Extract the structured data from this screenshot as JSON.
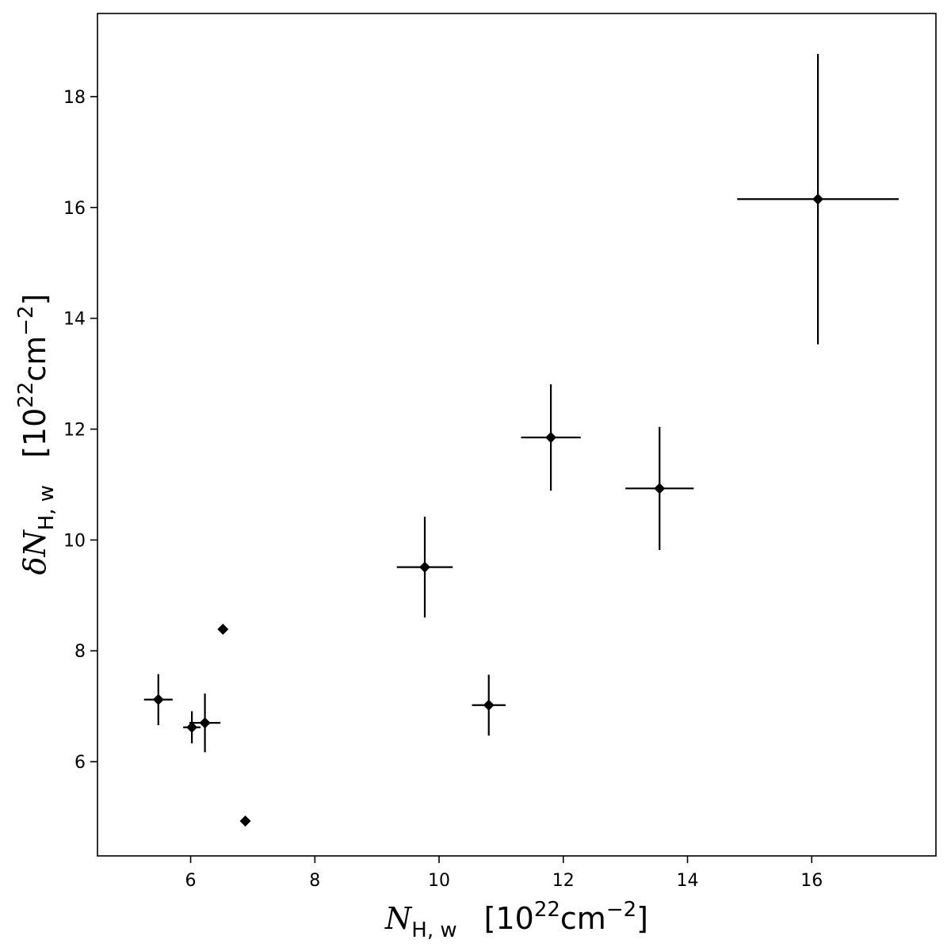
{
  "chart_data": {
    "type": "scatter",
    "title": "",
    "xlabel": {
      "symbol": "N",
      "subscript": "H, w",
      "units_open": "[10",
      "units_exp": "22",
      "units_mid": "cm",
      "units_exp2": "−2",
      "units_close": "]"
    },
    "ylabel": {
      "prefix": "δ",
      "symbol": "N",
      "subscript": "H, w",
      "units_open": "[10",
      "units_exp": "22",
      "units_mid": "cm",
      "units_exp2": "−2",
      "units_close": "]"
    },
    "xlim": [
      4.5,
      18.0
    ],
    "ylim": [
      4.3,
      19.5
    ],
    "xticks": [
      6,
      8,
      10,
      12,
      14,
      16
    ],
    "yticks": [
      6,
      8,
      10,
      12,
      14,
      16,
      18
    ],
    "grid": false,
    "marker": "diamond",
    "color": "#000000",
    "points": [
      {
        "x": 5.48,
        "y": 7.12,
        "xerr": 0.23,
        "yerr": 0.46
      },
      {
        "x": 6.02,
        "y": 6.62,
        "xerr": 0.14,
        "yerr": 0.29
      },
      {
        "x": 6.23,
        "y": 6.7,
        "xerr": 0.25,
        "yerr": 0.53
      },
      {
        "x": 6.52,
        "y": 8.39,
        "xerr": 0,
        "yerr": 0
      },
      {
        "x": 6.88,
        "y": 4.93,
        "xerr": 0,
        "yerr": 0
      },
      {
        "x": 9.77,
        "y": 9.51,
        "xerr": 0.45,
        "yerr": 0.91
      },
      {
        "x": 10.8,
        "y": 7.02,
        "xerr": 0.27,
        "yerr": 0.55
      },
      {
        "x": 11.8,
        "y": 11.85,
        "xerr": 0.48,
        "yerr": 0.96
      },
      {
        "x": 13.55,
        "y": 10.93,
        "xerr": 0.55,
        "yerr": 1.11
      },
      {
        "x": 16.1,
        "y": 16.15,
        "xerr": 1.3,
        "yerr": 2.62
      }
    ]
  }
}
